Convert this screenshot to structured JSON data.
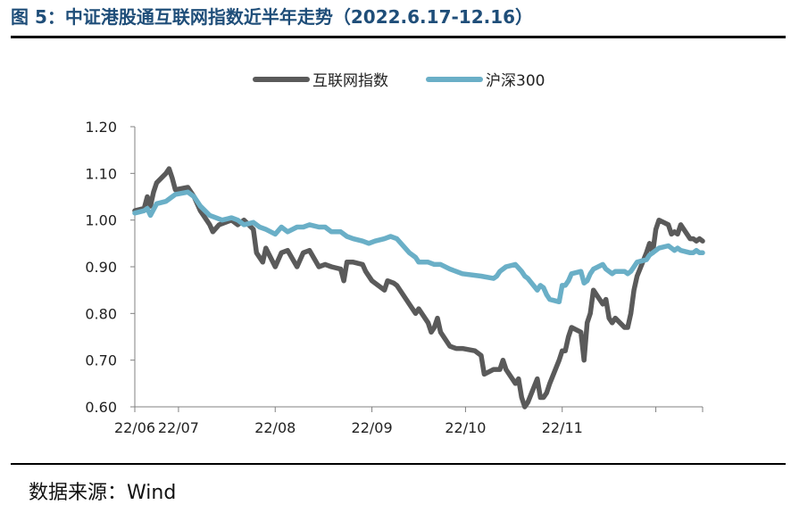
{
  "header": {
    "title": "图 5：中证港股通互联网指数近半年走势（2022.6.17-12.16）"
  },
  "footer": {
    "source": "数据来源：Wind"
  },
  "colors": {
    "series1": "#5a5a5a",
    "series2": "#6aafc7",
    "axis": "#808080"
  },
  "chart_data": {
    "type": "line",
    "title": "",
    "xlabel": "",
    "ylabel": "",
    "ylim": [
      0.6,
      1.2
    ],
    "yticks": [
      "1.20",
      "1.10",
      "1.00",
      "0.90",
      "0.80",
      "0.70",
      "0.60"
    ],
    "xticks": [
      "22/06",
      "22/07",
      "22/08",
      "22/09",
      "22/10",
      "22/11"
    ],
    "grid": false,
    "legend": "top-center",
    "x_range": [
      "2022-06-17",
      "2022-12-16"
    ],
    "series": [
      {
        "name": "互联网指数",
        "points": [
          [
            "2022-06-17",
            1.02
          ],
          [
            "2022-06-20",
            1.025
          ],
          [
            "2022-06-21",
            1.05
          ],
          [
            "2022-06-22",
            1.03
          ],
          [
            "2022-06-23",
            1.06
          ],
          [
            "2022-06-24",
            1.08
          ],
          [
            "2022-06-27",
            1.1
          ],
          [
            "2022-06-28",
            1.11
          ],
          [
            "2022-06-29",
            1.09
          ],
          [
            "2022-06-30",
            1.065
          ],
          [
            "2022-07-04",
            1.07
          ],
          [
            "2022-07-06",
            1.05
          ],
          [
            "2022-07-08",
            1.02
          ],
          [
            "2022-07-11",
            0.99
          ],
          [
            "2022-07-12",
            0.975
          ],
          [
            "2022-07-14",
            0.99
          ],
          [
            "2022-07-18",
            1.0
          ],
          [
            "2022-07-20",
            0.99
          ],
          [
            "2022-07-22",
            1.0
          ],
          [
            "2022-07-25",
            0.98
          ],
          [
            "2022-07-26",
            0.93
          ],
          [
            "2022-07-28",
            0.91
          ],
          [
            "2022-07-29",
            0.94
          ],
          [
            "2022-08-01",
            0.9
          ],
          [
            "2022-08-03",
            0.93
          ],
          [
            "2022-08-05",
            0.935
          ],
          [
            "2022-08-08",
            0.9
          ],
          [
            "2022-08-10",
            0.93
          ],
          [
            "2022-08-12",
            0.935
          ],
          [
            "2022-08-15",
            0.9
          ],
          [
            "2022-08-17",
            0.905
          ],
          [
            "2022-08-19",
            0.9
          ],
          [
            "2022-08-22",
            0.895
          ],
          [
            "2022-08-23",
            0.87
          ],
          [
            "2022-08-24",
            0.91
          ],
          [
            "2022-08-26",
            0.91
          ],
          [
            "2022-08-29",
            0.905
          ],
          [
            "2022-08-30",
            0.89
          ],
          [
            "2022-09-01",
            0.87
          ],
          [
            "2022-09-05",
            0.85
          ],
          [
            "2022-09-06",
            0.87
          ],
          [
            "2022-09-08",
            0.865
          ],
          [
            "2022-09-09",
            0.86
          ],
          [
            "2022-09-13",
            0.82
          ],
          [
            "2022-09-15",
            0.8
          ],
          [
            "2022-09-16",
            0.81
          ],
          [
            "2022-09-19",
            0.78
          ],
          [
            "2022-09-20",
            0.76
          ],
          [
            "2022-09-21",
            0.77
          ],
          [
            "2022-09-22",
            0.79
          ],
          [
            "2022-09-23",
            0.76
          ],
          [
            "2022-09-26",
            0.73
          ],
          [
            "2022-09-28",
            0.725
          ],
          [
            "2022-09-30",
            0.725
          ],
          [
            "2022-10-04",
            0.72
          ],
          [
            "2022-10-06",
            0.71
          ],
          [
            "2022-10-07",
            0.67
          ],
          [
            "2022-10-10",
            0.68
          ],
          [
            "2022-10-12",
            0.68
          ],
          [
            "2022-10-13",
            0.7
          ],
          [
            "2022-10-14",
            0.68
          ],
          [
            "2022-10-17",
            0.65
          ],
          [
            "2022-10-18",
            0.66
          ],
          [
            "2022-10-19",
            0.62
          ],
          [
            "2022-10-20",
            0.6
          ],
          [
            "2022-10-21",
            0.61
          ],
          [
            "2022-10-24",
            0.66
          ],
          [
            "2022-10-25",
            0.62
          ],
          [
            "2022-10-26",
            0.62
          ],
          [
            "2022-10-27",
            0.63
          ],
          [
            "2022-10-28",
            0.65
          ],
          [
            "2022-10-31",
            0.7
          ],
          [
            "2022-11-01",
            0.72
          ],
          [
            "2022-11-02",
            0.72
          ],
          [
            "2022-11-03",
            0.75
          ],
          [
            "2022-11-04",
            0.77
          ],
          [
            "2022-11-07",
            0.76
          ],
          [
            "2022-11-08",
            0.7
          ],
          [
            "2022-11-09",
            0.78
          ],
          [
            "2022-11-10",
            0.8
          ],
          [
            "2022-11-11",
            0.85
          ],
          [
            "2022-11-14",
            0.82
          ],
          [
            "2022-11-15",
            0.83
          ],
          [
            "2022-11-16",
            0.79
          ],
          [
            "2022-11-17",
            0.78
          ],
          [
            "2022-11-18",
            0.79
          ],
          [
            "2022-11-21",
            0.77
          ],
          [
            "2022-11-22",
            0.77
          ],
          [
            "2022-11-23",
            0.8
          ],
          [
            "2022-11-24",
            0.85
          ],
          [
            "2022-11-25",
            0.88
          ],
          [
            "2022-11-28",
            0.93
          ],
          [
            "2022-11-29",
            0.95
          ],
          [
            "2022-11-30",
            0.93
          ],
          [
            "2022-12-01",
            0.98
          ],
          [
            "2022-12-02",
            1.0
          ],
          [
            "2022-12-05",
            0.99
          ],
          [
            "2022-12-06",
            0.97
          ],
          [
            "2022-12-07",
            0.975
          ],
          [
            "2022-12-08",
            0.97
          ],
          [
            "2022-12-09",
            0.99
          ],
          [
            "2022-12-12",
            0.96
          ],
          [
            "2022-12-13",
            0.96
          ],
          [
            "2022-12-14",
            0.955
          ],
          [
            "2022-12-15",
            0.96
          ],
          [
            "2022-12-16",
            0.955
          ]
        ]
      },
      {
        "name": "沪深300",
        "points": [
          [
            "2022-06-17",
            1.015
          ],
          [
            "2022-06-20",
            1.02
          ],
          [
            "2022-06-21",
            1.025
          ],
          [
            "2022-06-22",
            1.01
          ],
          [
            "2022-06-24",
            1.035
          ],
          [
            "2022-06-27",
            1.04
          ],
          [
            "2022-06-29",
            1.05
          ],
          [
            "2022-06-30",
            1.055
          ],
          [
            "2022-07-04",
            1.06
          ],
          [
            "2022-07-06",
            1.05
          ],
          [
            "2022-07-08",
            1.03
          ],
          [
            "2022-07-11",
            1.01
          ],
          [
            "2022-07-13",
            1.005
          ],
          [
            "2022-07-15",
            1.0
          ],
          [
            "2022-07-18",
            1.005
          ],
          [
            "2022-07-20",
            1.0
          ],
          [
            "2022-07-22",
            0.99
          ],
          [
            "2022-07-25",
            0.995
          ],
          [
            "2022-07-27",
            0.985
          ],
          [
            "2022-07-29",
            0.98
          ],
          [
            "2022-08-01",
            0.97
          ],
          [
            "2022-08-03",
            0.985
          ],
          [
            "2022-08-05",
            0.975
          ],
          [
            "2022-08-08",
            0.985
          ],
          [
            "2022-08-10",
            0.985
          ],
          [
            "2022-08-12",
            0.99
          ],
          [
            "2022-08-15",
            0.985
          ],
          [
            "2022-08-17",
            0.985
          ],
          [
            "2022-08-19",
            0.975
          ],
          [
            "2022-08-22",
            0.975
          ],
          [
            "2022-08-24",
            0.965
          ],
          [
            "2022-08-26",
            0.96
          ],
          [
            "2022-08-29",
            0.955
          ],
          [
            "2022-08-31",
            0.95
          ],
          [
            "2022-09-02",
            0.955
          ],
          [
            "2022-09-05",
            0.96
          ],
          [
            "2022-09-07",
            0.965
          ],
          [
            "2022-09-09",
            0.96
          ],
          [
            "2022-09-13",
            0.93
          ],
          [
            "2022-09-15",
            0.92
          ],
          [
            "2022-09-16",
            0.91
          ],
          [
            "2022-09-19",
            0.91
          ],
          [
            "2022-09-21",
            0.905
          ],
          [
            "2022-09-23",
            0.905
          ],
          [
            "2022-09-26",
            0.895
          ],
          [
            "2022-09-28",
            0.89
          ],
          [
            "2022-09-30",
            0.885
          ],
          [
            "2022-10-06",
            0.88
          ],
          [
            "2022-10-10",
            0.875
          ],
          [
            "2022-10-11",
            0.88
          ],
          [
            "2022-10-12",
            0.89
          ],
          [
            "2022-10-14",
            0.9
          ],
          [
            "2022-10-17",
            0.905
          ],
          [
            "2022-10-19",
            0.89
          ],
          [
            "2022-10-20",
            0.88
          ],
          [
            "2022-10-21",
            0.875
          ],
          [
            "2022-10-24",
            0.85
          ],
          [
            "2022-10-25",
            0.86
          ],
          [
            "2022-10-26",
            0.855
          ],
          [
            "2022-10-27",
            0.84
          ],
          [
            "2022-10-28",
            0.83
          ],
          [
            "2022-10-31",
            0.825
          ],
          [
            "2022-11-01",
            0.86
          ],
          [
            "2022-11-02",
            0.86
          ],
          [
            "2022-11-03",
            0.87
          ],
          [
            "2022-11-04",
            0.885
          ],
          [
            "2022-11-07",
            0.89
          ],
          [
            "2022-11-08",
            0.865
          ],
          [
            "2022-11-09",
            0.87
          ],
          [
            "2022-11-10",
            0.885
          ],
          [
            "2022-11-11",
            0.895
          ],
          [
            "2022-11-14",
            0.905
          ],
          [
            "2022-11-15",
            0.895
          ],
          [
            "2022-11-16",
            0.89
          ],
          [
            "2022-11-17",
            0.885
          ],
          [
            "2022-11-18",
            0.89
          ],
          [
            "2022-11-21",
            0.89
          ],
          [
            "2022-11-22",
            0.885
          ],
          [
            "2022-11-23",
            0.89
          ],
          [
            "2022-11-24",
            0.9
          ],
          [
            "2022-11-25",
            0.91
          ],
          [
            "2022-11-28",
            0.915
          ],
          [
            "2022-11-29",
            0.925
          ],
          [
            "2022-11-30",
            0.93
          ],
          [
            "2022-12-01",
            0.935
          ],
          [
            "2022-12-02",
            0.94
          ],
          [
            "2022-12-05",
            0.945
          ],
          [
            "2022-12-06",
            0.94
          ],
          [
            "2022-12-07",
            0.935
          ],
          [
            "2022-12-08",
            0.94
          ],
          [
            "2022-12-09",
            0.935
          ],
          [
            "2022-12-12",
            0.93
          ],
          [
            "2022-12-13",
            0.93
          ],
          [
            "2022-12-14",
            0.935
          ],
          [
            "2022-12-15",
            0.93
          ],
          [
            "2022-12-16",
            0.93
          ]
        ]
      }
    ]
  }
}
